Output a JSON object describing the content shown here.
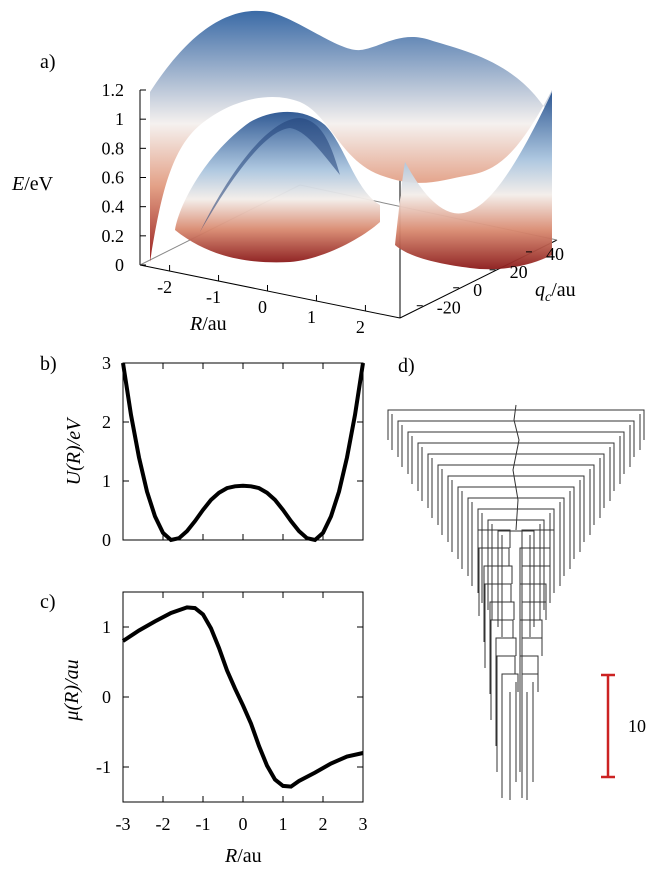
{
  "chart_data": [
    {
      "panel": "a)",
      "type": "surface3d",
      "zlabel_var": "E",
      "zlabel_unit": "/eV",
      "xlabel_var": "R",
      "xlabel_unit": "/au",
      "ylabel_var": "q",
      "ylabel_sub": "c",
      "ylabel_unit": "/au",
      "z_ticks": [
        "0",
        "0.2",
        "0.4",
        "0.6",
        "0.8",
        "1",
        "1.2"
      ],
      "x_ticks": [
        "-2",
        "-1",
        "0",
        "1",
        "2"
      ],
      "y_ticks": [
        "-20",
        "0",
        "20",
        "40"
      ],
      "zlim": [
        0,
        1.2
      ],
      "xlim": [
        -2.5,
        2.5
      ],
      "ylim": [
        -30,
        40
      ],
      "colormap": [
        "#8b1a1a",
        "#e8a88a",
        "#f4f2f2",
        "#8fb4d8",
        "#2a5a96"
      ]
    },
    {
      "panel": "b)",
      "type": "line",
      "ylabel": "U(R)/eV",
      "x_ticks": [],
      "y_ticks": [
        "0",
        "1",
        "2",
        "3"
      ],
      "xlim": [
        -3,
        3
      ],
      "ylim": [
        0,
        3
      ],
      "series": [
        {
          "x": [
            -3,
            -2.8,
            -2.6,
            -2.4,
            -2.2,
            -2.0,
            -1.8,
            -1.6,
            -1.4,
            -1.2,
            -1.0,
            -0.8,
            -0.6,
            -0.4,
            -0.2,
            0,
            0.2,
            0.4,
            0.6,
            0.8,
            1.0,
            1.2,
            1.4,
            1.6,
            1.8,
            2.0,
            2.2,
            2.4,
            2.6,
            2.8,
            3.0
          ],
          "values": [
            3.0,
            2.12,
            1.4,
            0.82,
            0.4,
            0.12,
            0.0,
            0.03,
            0.15,
            0.32,
            0.51,
            0.68,
            0.8,
            0.88,
            0.91,
            0.92,
            0.91,
            0.88,
            0.8,
            0.68,
            0.51,
            0.32,
            0.15,
            0.03,
            0.0,
            0.12,
            0.4,
            0.82,
            1.4,
            2.12,
            3.0
          ]
        }
      ]
    },
    {
      "panel": "c)",
      "type": "line",
      "ylabel": "μ(R)/au",
      "xlabel_var": "R",
      "xlabel_unit": "/au",
      "x_ticks": [
        "-3",
        "-2",
        "-1",
        "0",
        "1",
        "2",
        "3"
      ],
      "y_ticks": [
        "1",
        "0",
        "-1"
      ],
      "xlim": [
        -3,
        3
      ],
      "ylim": [
        -1.5,
        1.5
      ],
      "series": [
        {
          "x": [
            -3,
            -2.6,
            -2.2,
            -1.8,
            -1.4,
            -1.2,
            -1.0,
            -0.8,
            -0.6,
            -0.4,
            -0.2,
            0,
            0.2,
            0.4,
            0.6,
            0.8,
            1.0,
            1.2,
            1.4,
            1.8,
            2.2,
            2.6,
            3.0
          ],
          "values": [
            0.8,
            0.95,
            1.08,
            1.2,
            1.28,
            1.27,
            1.18,
            0.98,
            0.7,
            0.38,
            0.12,
            -0.12,
            -0.38,
            -0.7,
            -0.98,
            -1.18,
            -1.27,
            -1.28,
            -1.2,
            -1.08,
            -0.95,
            -0.85,
            -0.8
          ]
        }
      ]
    },
    {
      "panel": "d)",
      "type": "tree",
      "scale_label": "10",
      "scale_color": "#cc2222",
      "levels": 12
    }
  ]
}
